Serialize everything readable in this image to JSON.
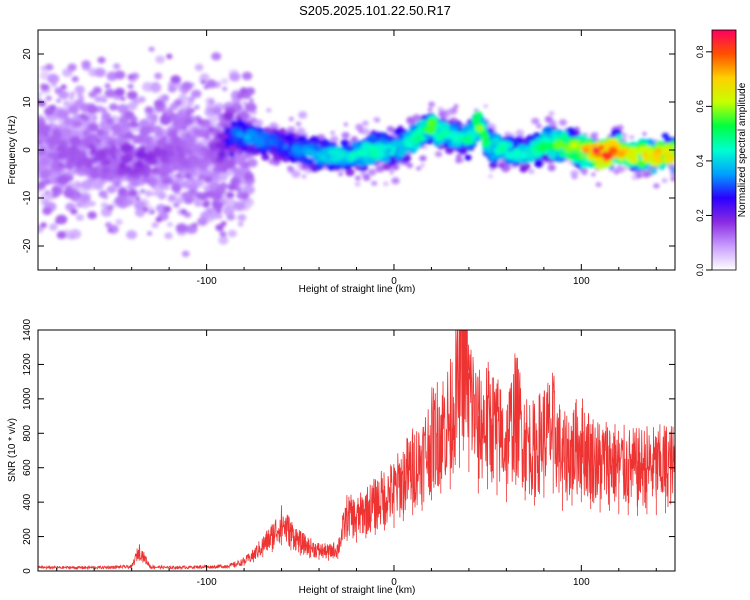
{
  "title": "S205.2025.101.22.50.R17",
  "chart_data": [
    {
      "type": "heatmap",
      "xlabel": "Height of straight line (km)",
      "ylabel": "Frequency (Hz)",
      "xlim": [
        -190,
        150
      ],
      "ylim": [
        -25,
        25
      ],
      "xticks": [
        -100,
        0,
        100
      ],
      "yticks": [
        -20,
        -10,
        0,
        10,
        20
      ],
      "colorbar": {
        "label": "Normalized spectral amplitude",
        "range": [
          0.0,
          0.88
        ],
        "ticks": [
          0.0,
          0.2,
          0.4,
          0.6,
          0.8
        ],
        "colors": [
          "#ffffff",
          "#c89cff",
          "#8a2be2",
          "#2a00ff",
          "#00a0ff",
          "#00ffd0",
          "#00ff40",
          "#c8ff00",
          "#ffd000",
          "#ff5000",
          "#ff0060"
        ]
      },
      "ridge": {
        "x": [
          -190,
          -160,
          -140,
          -120,
          -100,
          -90,
          -85,
          -80,
          -70,
          -60,
          -50,
          -40,
          -30,
          -20,
          -10,
          0,
          10,
          20,
          30,
          40,
          45,
          50,
          60,
          70,
          80,
          90,
          100,
          110,
          120,
          130,
          140,
          150
        ],
        "freq": [
          0,
          -1,
          -2,
          -1,
          -1,
          1,
          4,
          3,
          2,
          1,
          0,
          -1,
          -1,
          -1,
          0,
          0,
          2,
          5,
          3,
          2,
          6,
          1,
          0,
          -1,
          1,
          1,
          0,
          -1,
          0,
          -1,
          -1,
          -1
        ],
        "amplitude": [
          0.12,
          0.15,
          0.18,
          0.14,
          0.12,
          0.2,
          0.3,
          0.35,
          0.32,
          0.3,
          0.32,
          0.38,
          0.4,
          0.42,
          0.45,
          0.4,
          0.45,
          0.55,
          0.42,
          0.45,
          0.58,
          0.48,
          0.42,
          0.4,
          0.5,
          0.55,
          0.62,
          0.88,
          0.7,
          0.6,
          0.72,
          0.65
        ]
      }
    },
    {
      "type": "line",
      "xlabel": "Height of straight line (km)",
      "ylabel": "SNR (10 * v/v)",
      "xlim": [
        -190,
        150
      ],
      "ylim": [
        0,
        1400
      ],
      "xticks": [
        -100,
        0,
        100
      ],
      "yticks": [
        0,
        200,
        400,
        600,
        800,
        1000,
        1200,
        1400
      ],
      "color": "#ee3333",
      "series": [
        {
          "x": [
            -190,
            -180,
            -170,
            -160,
            -150,
            -140,
            -136,
            -130,
            -120,
            -110,
            -100,
            -90,
            -85,
            -80,
            -75,
            -70,
            -65,
            -60,
            -55,
            -50,
            -45,
            -40,
            -35,
            -30,
            -25,
            -20,
            -15,
            -10,
            -5,
            0,
            5,
            10,
            15,
            20,
            25,
            30,
            35,
            37,
            40,
            45,
            50,
            55,
            60,
            65,
            70,
            75,
            80,
            85,
            90,
            95,
            100,
            105,
            110,
            115,
            120,
            125,
            130,
            135,
            140,
            145,
            150
          ],
          "y": [
            20,
            20,
            20,
            20,
            22,
            25,
            120,
            25,
            20,
            22,
            25,
            30,
            40,
            60,
            100,
            160,
            220,
            300,
            240,
            180,
            150,
            130,
            120,
            140,
            350,
            330,
            380,
            420,
            470,
            500,
            580,
            650,
            700,
            820,
            900,
            950,
            1200,
            1400,
            1150,
            900,
            950,
            880,
            800,
            1000,
            820,
            760,
            850,
            900,
            700,
            760,
            800,
            720,
            680,
            700,
            660,
            650,
            640,
            660,
            650,
            670,
            660
          ]
        }
      ]
    }
  ]
}
